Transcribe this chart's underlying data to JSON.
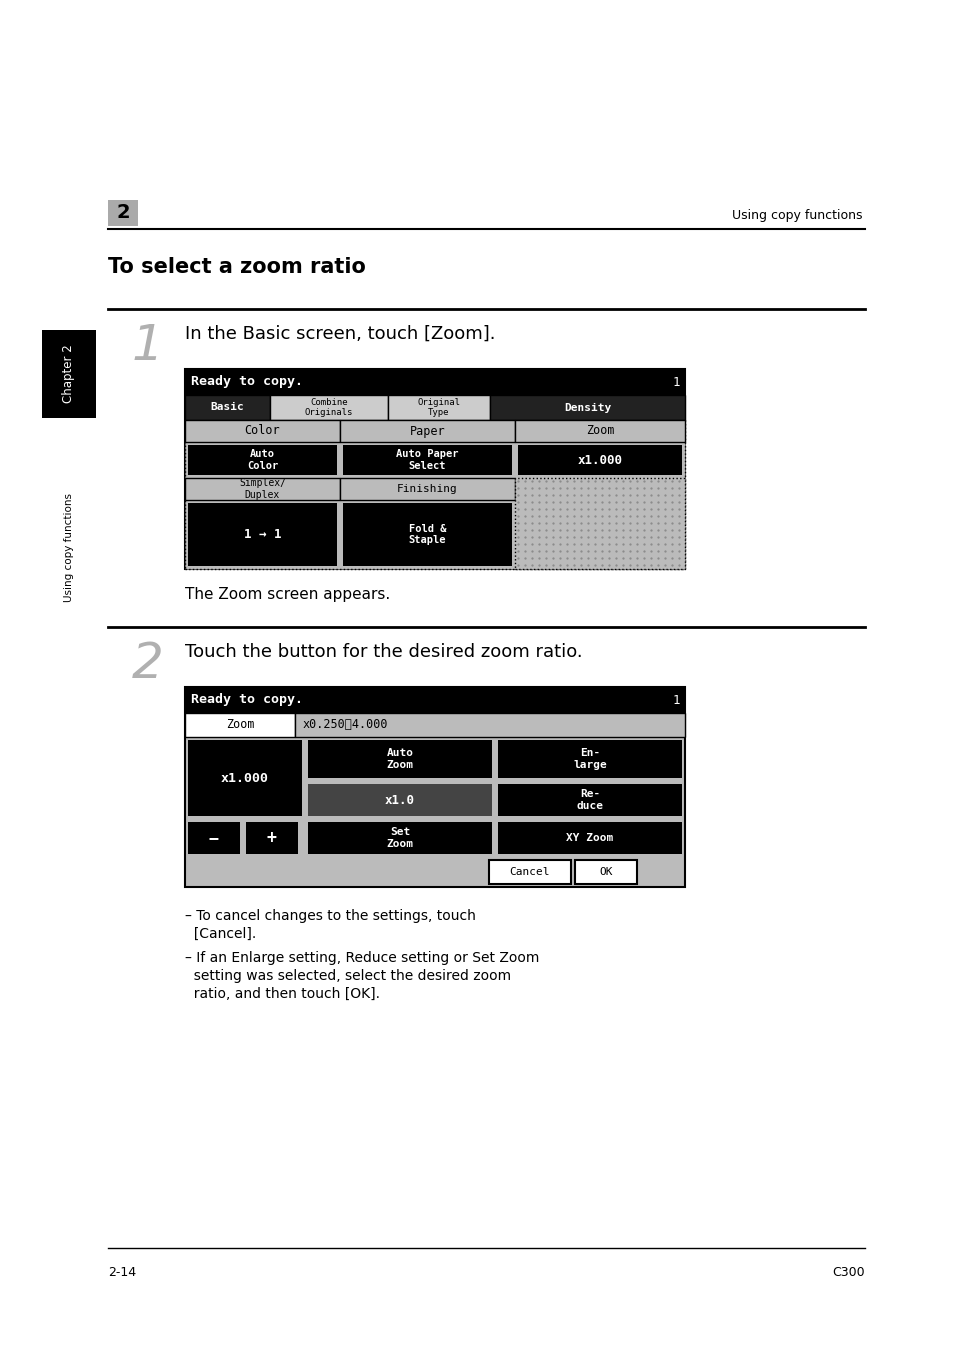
{
  "bg_color": "#ffffff",
  "chapter_label": "2",
  "header_right": "Using copy functions",
  "title": "To select a zoom ratio",
  "step1_num": "1",
  "step1_text": "In the Basic screen, touch [Zoom].",
  "step1_caption": "The Zoom screen appears.",
  "step2_num": "2",
  "step2_text": "Touch the button for the desired zoom ratio.",
  "sidebar_text": "Using copy functions",
  "sidebar_chapter": "Chapter 2",
  "footer_left": "2-14",
  "footer_right": "C300",
  "bullet1_line1": "– To cancel changes to the settings, touch",
  "bullet1_line2": "  [Cancel].",
  "bullet2_line1": "– If an Enlarge setting, Reduce setting or Set Zoom",
  "bullet2_line2": "  setting was selected, select the desired zoom",
  "bullet2_line3": "  ratio, and then touch [OK]."
}
